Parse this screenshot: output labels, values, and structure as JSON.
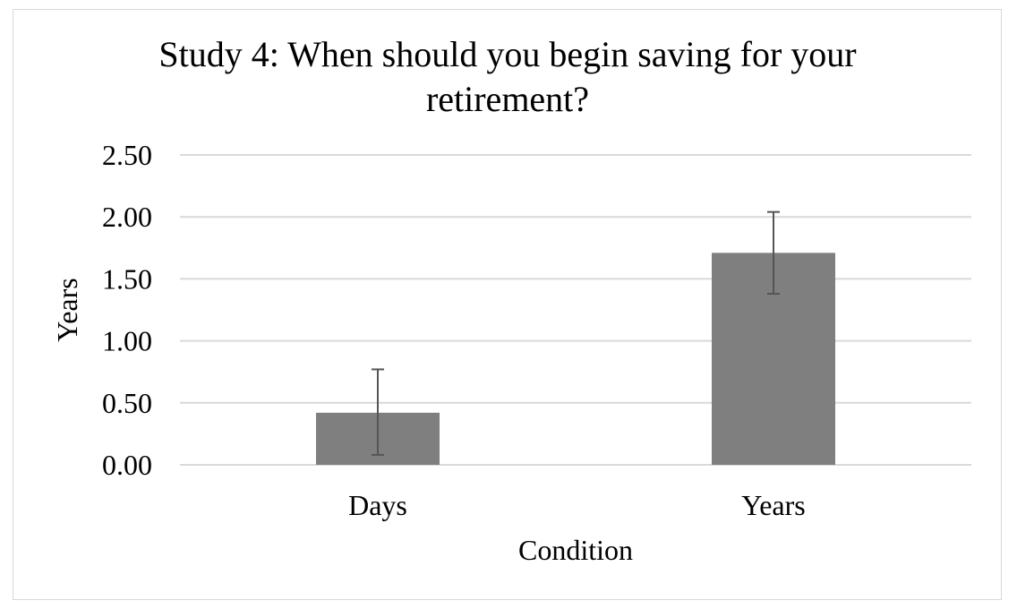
{
  "chart_data": {
    "type": "bar",
    "title_lines": [
      "Study 4: When should you begin saving for your",
      "retirement?"
    ],
    "xlabel": "Condition",
    "ylabel": "Years",
    "categories": [
      "Days",
      "Years"
    ],
    "values": [
      0.42,
      1.71
    ],
    "error_low": [
      0.08,
      1.38
    ],
    "error_high": [
      0.77,
      2.04
    ],
    "ylim": [
      0,
      2.5
    ],
    "yticks": [
      0,
      0.5,
      1.0,
      1.5,
      2.0,
      2.5
    ],
    "ytick_labels": [
      "0.00",
      "0.50",
      "1.00",
      "1.50",
      "2.00",
      "2.50"
    ],
    "grid": true,
    "bar_color": "#7f7f7f",
    "error_bar_color": "#555555",
    "grid_color": "#d9d9d9"
  }
}
